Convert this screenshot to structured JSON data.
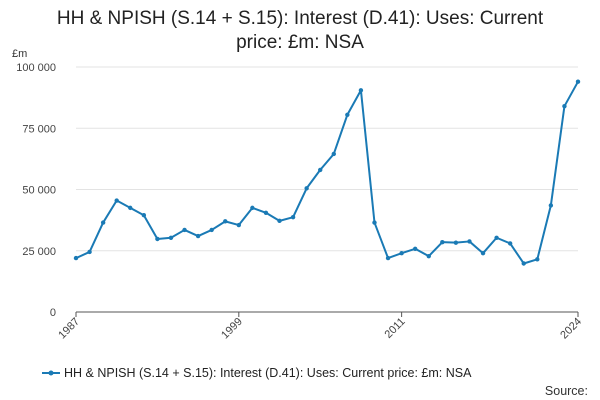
{
  "chart_data": {
    "type": "line",
    "title_lines": [
      "HH & NPISH (S.14 + S.15): Interest (D.41): Uses: Current",
      "price: £m: NSA"
    ],
    "y_unit": "£m",
    "ylim": [
      0,
      100000
    ],
    "y_ticks": [
      0,
      25000,
      50000,
      75000,
      100000
    ],
    "y_tick_labels": [
      "0",
      "25 000",
      "50 000",
      "75 000",
      "100 000"
    ],
    "xlim": [
      1987,
      2024
    ],
    "x_ticks": [
      1987,
      1999,
      2011,
      2024
    ],
    "x_tick_labels": [
      "1987",
      "1999",
      "2011",
      "2024"
    ],
    "grid": "horizontal",
    "legend_position": "bottom",
    "series": [
      {
        "name": "HH & NPISH (S.14 + S.15): Interest (D.41): Uses: Current price: £m: NSA",
        "color": "#1a7ab5",
        "x": [
          1987,
          1988,
          1989,
          1990,
          1991,
          1992,
          1993,
          1994,
          1995,
          1996,
          1997,
          1998,
          1999,
          2000,
          2001,
          2002,
          2003,
          2004,
          2005,
          2006,
          2007,
          2008,
          2009,
          2010,
          2011,
          2012,
          2013,
          2014,
          2015,
          2016,
          2017,
          2018,
          2019,
          2020,
          2021,
          2022,
          2023,
          2024
        ],
        "values": [
          22000,
          24500,
          36500,
          45500,
          42500,
          39500,
          29800,
          30300,
          33500,
          31000,
          33500,
          37000,
          35500,
          42500,
          40500,
          37200,
          38700,
          50500,
          58000,
          64500,
          80500,
          90500,
          36500,
          22000,
          24000,
          25800,
          22800,
          28500,
          28300,
          28800,
          24000,
          30300,
          28000,
          19800,
          21500,
          43500,
          84000,
          94000
        ]
      }
    ]
  },
  "legend": {
    "label": "HH & NPISH (S.14 + S.15): Interest (D.41): Uses: Current price: £m: NSA"
  },
  "source_label": "Source:"
}
